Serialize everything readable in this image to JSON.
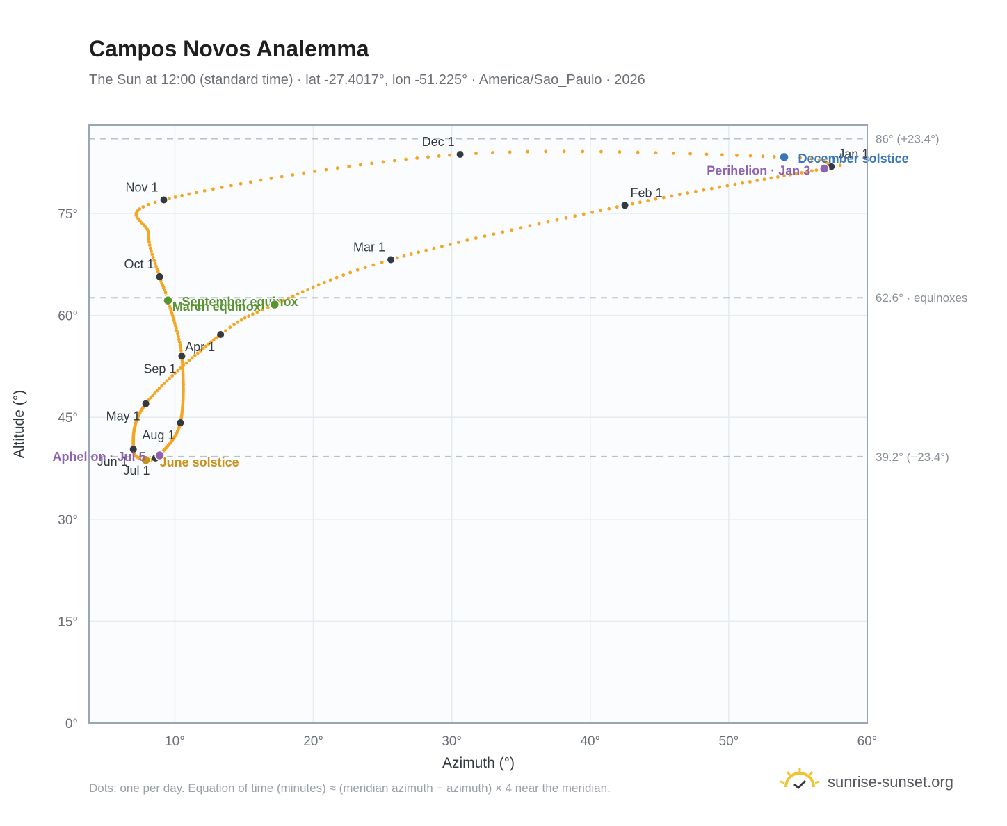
{
  "header": {
    "title": "Campos Novos Analemma",
    "subtitle": "The Sun at 12:00 (standard time) · lat -27.4017°, lon -51.225° · America/Sao_Paulo · 2026"
  },
  "footer": {
    "note": "Dots: one per day. Equation of time (minutes) ≈ (meridian azimuth − azimuth) × 4 near the meridian.",
    "brand": "sunrise-sunset.org"
  },
  "colors": {
    "path": "#f4a523",
    "month_marker": "#333940",
    "december_solstice": "#3a76b8",
    "june_solstice": "#c9921c",
    "equinox": "#5a9431",
    "apsis": "#8e62b0",
    "reference_line": "#b9c1cb",
    "plot_background": "#fafcfe",
    "grid": "#e6ebf0"
  },
  "chart_data": {
    "type": "scatter",
    "xlabel": "Azimuth (°)",
    "ylabel": "Altitude (°)",
    "xlim": [
      3.8,
      60
    ],
    "ylim": [
      0,
      88
    ],
    "x_ticks": [
      10,
      20,
      30,
      40,
      50,
      60
    ],
    "x_tick_labels": [
      "10°",
      "20°",
      "30°",
      "40°",
      "50°",
      "60°"
    ],
    "y_ticks": [
      0,
      15,
      30,
      45,
      60,
      75
    ],
    "y_tick_labels": [
      "0°",
      "15°",
      "30°",
      "45°",
      "60°",
      "75°"
    ],
    "grid": true,
    "path_anchors": [
      {
        "day": 1,
        "az": 57.4,
        "alt": 81.9
      },
      {
        "day": 3,
        "az": 56.9,
        "alt": 81.6
      },
      {
        "day": 32,
        "az": 42.5,
        "alt": 76.2
      },
      {
        "day": 60,
        "az": 25.6,
        "alt": 68.2
      },
      {
        "day": 79,
        "az": 17.2,
        "alt": 61.6
      },
      {
        "day": 91,
        "az": 13.3,
        "alt": 57.2
      },
      {
        "day": 121,
        "az": 7.9,
        "alt": 47.0
      },
      {
        "day": 152,
        "az": 7.0,
        "alt": 40.3
      },
      {
        "day": 172,
        "az": 7.9,
        "alt": 38.7
      },
      {
        "day": 182,
        "az": 8.6,
        "alt": 39.0
      },
      {
        "day": 186,
        "az": 8.9,
        "alt": 39.4
      },
      {
        "day": 213,
        "az": 10.4,
        "alt": 44.2
      },
      {
        "day": 244,
        "az": 10.5,
        "alt": 54.0
      },
      {
        "day": 266,
        "az": 9.5,
        "alt": 62.2
      },
      {
        "day": 274,
        "az": 8.9,
        "alt": 65.7
      },
      {
        "day": 289,
        "az": 8.1,
        "alt": 72.0
      },
      {
        "day": 305,
        "az": 9.2,
        "alt": 77.0
      },
      {
        "day": 335,
        "az": 30.6,
        "alt": 83.7
      },
      {
        "day": 355,
        "az": 54.0,
        "alt": 83.3
      },
      {
        "day": 365,
        "az": 57.2,
        "alt": 81.9
      }
    ],
    "month_markers": [
      {
        "label": "Jan 1",
        "az": 57.4,
        "alt": 81.9,
        "anchor": "start",
        "dx": 10,
        "dy": -12
      },
      {
        "label": "Feb 1",
        "az": 42.5,
        "alt": 76.2,
        "anchor": "start",
        "dx": 8,
        "dy": -12
      },
      {
        "label": "Mar 1",
        "az": 25.6,
        "alt": 68.2,
        "anchor": "end",
        "dx": -8,
        "dy": -12
      },
      {
        "label": "Apr 1",
        "az": 13.3,
        "alt": 57.2,
        "anchor": "end",
        "dx": -8,
        "dy": 24
      },
      {
        "label": "May 1",
        "az": 7.9,
        "alt": 47.0,
        "anchor": "end",
        "dx": -8,
        "dy": 24
      },
      {
        "label": "Jun 1",
        "az": 7.0,
        "alt": 40.3,
        "anchor": "end",
        "dx": -8,
        "dy": 24
      },
      {
        "label": "Jul 1",
        "az": 8.6,
        "alt": 39.0,
        "anchor": "end",
        "dx": -8,
        "dy": 24
      },
      {
        "label": "Aug 1",
        "az": 10.4,
        "alt": 44.2,
        "anchor": "end",
        "dx": -8,
        "dy": 24
      },
      {
        "label": "Sep 1",
        "az": 10.5,
        "alt": 54.0,
        "anchor": "end",
        "dx": -8,
        "dy": 24
      },
      {
        "label": "Oct 1",
        "az": 8.9,
        "alt": 65.7,
        "anchor": "end",
        "dx": -8,
        "dy": -12
      },
      {
        "label": "Nov 1",
        "az": 9.2,
        "alt": 77.0,
        "anchor": "end",
        "dx": -8,
        "dy": -12
      },
      {
        "label": "Dec 1",
        "az": 30.6,
        "alt": 83.7,
        "anchor": "end",
        "dx": -8,
        "dy": -12
      }
    ],
    "events": [
      {
        "label": "December solstice",
        "az": 54.0,
        "alt": 83.3,
        "color": "#3a76b8",
        "anchor": "start",
        "dx": 20,
        "dy": 8
      },
      {
        "label": "Perihelion · Jan 3",
        "az": 56.9,
        "alt": 81.6,
        "color": "#8e62b0",
        "anchor": "end",
        "dx": -20,
        "dy": 9
      },
      {
        "label": "September equinox",
        "az": 9.5,
        "alt": 62.2,
        "color": "#5a9431",
        "anchor": "start",
        "dx": 20,
        "dy": 8
      },
      {
        "label": "March equinox",
        "az": 17.2,
        "alt": 61.6,
        "color": "#5a9431",
        "anchor": "end",
        "dx": -20,
        "dy": 9
      },
      {
        "label": "June solstice",
        "az": 7.9,
        "alt": 38.7,
        "color": "#c9921c",
        "anchor": "start",
        "dx": 20,
        "dy": 9
      },
      {
        "label": "Aphelion · Jul 5",
        "az": 8.9,
        "alt": 39.4,
        "color": "#8e62b0",
        "anchor": "end",
        "dx": -20,
        "dy": 8
      }
    ],
    "reference_lines": [
      {
        "alt": 86.0,
        "label": "86° (+23.4°)"
      },
      {
        "alt": 62.6,
        "label": "62.6° · equinoxes"
      },
      {
        "alt": 39.2,
        "label": "39.2° (−23.4°)"
      }
    ]
  }
}
